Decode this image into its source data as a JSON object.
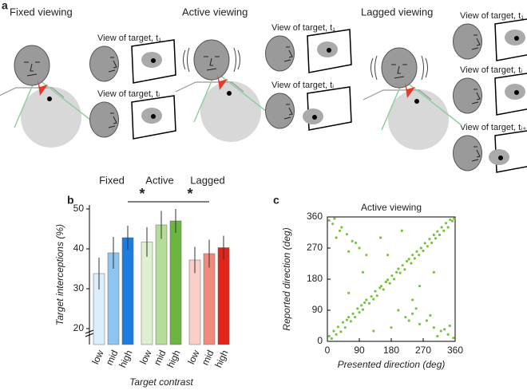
{
  "panel_labels": [
    "a",
    "b",
    "c"
  ],
  "diagram": {
    "titles": [
      "Fixed viewing",
      "Active viewing",
      "Lagged viewing"
    ],
    "views": [
      [
        "View of target, t₁",
        "View of target, tᵢ"
      ],
      [
        "View of target, t₁",
        "View of target, tᵢ"
      ],
      [
        "View of target, t₁",
        "View of target, tᵢ",
        "View of target, tᵢ₊ₗ"
      ]
    ]
  },
  "chart_data": [
    {
      "type": "bar",
      "ylabel": "Target interceptions (%)",
      "xlabel": "Target contrast",
      "groups": [
        "Fixed",
        "Active",
        "Lagged"
      ],
      "categories": [
        "low",
        "mid",
        "high",
        "low",
        "mid",
        "high",
        "low",
        "mid",
        "high"
      ],
      "values": [
        33.8,
        39,
        42.8,
        41.7,
        46,
        47,
        37.2,
        38.8,
        40.3
      ],
      "errors": [
        4,
        4,
        3,
        3.7,
        3.5,
        3,
        3.3,
        3.5,
        3
      ],
      "colors": [
        "#dceefb",
        "#8ec4f0",
        "#1e7be0",
        "#dff0d0",
        "#b5dc98",
        "#6cb541",
        "#f9cfc8",
        "#f08a7c",
        "#e3241b"
      ],
      "annotations": [
        "*",
        "*"
      ],
      "ylim": [
        16,
        51
      ],
      "yticks": [
        20,
        30,
        40,
        50
      ]
    },
    {
      "type": "scatter",
      "title": "Active viewing",
      "xlabel": "Presented direction (deg)",
      "ylabel": "Reported direction (deg)",
      "color": "#7cc242",
      "x": [
        5,
        12,
        18,
        25,
        30,
        38,
        44,
        50,
        55,
        60,
        66,
        72,
        78,
        85,
        90,
        96,
        100,
        105,
        110,
        118,
        124,
        130,
        135,
        140,
        148,
        152,
        158,
        165,
        170,
        176,
        182,
        188,
        195,
        200,
        205,
        212,
        218,
        224,
        230,
        236,
        240,
        246,
        252,
        258,
        264,
        270,
        275,
        282,
        288,
        294,
        300,
        305,
        310,
        316,
        322,
        328,
        334,
        340,
        346,
        352,
        357,
        200,
        220,
        240,
        260,
        280,
        300,
        320,
        340,
        355,
        250,
        290,
        330,
        230,
        310,
        345,
        5,
        15,
        25,
        40,
        55,
        70,
        90,
        110,
        20,
        60,
        35,
        80,
        150,
        180,
        100,
        130,
        260,
        300,
        60,
        210,
        170,
        240
      ],
      "y": [
        15,
        8,
        30,
        20,
        42,
        28,
        55,
        40,
        62,
        70,
        58,
        80,
        70,
        95,
        84,
        104,
        92,
        112,
        120,
        110,
        130,
        122,
        145,
        132,
        155,
        160,
        150,
        172,
        178,
        168,
        190,
        180,
        200,
        210,
        198,
        220,
        208,
        232,
        238,
        226,
        250,
        240,
        260,
        250,
        270,
        262,
        284,
        275,
        296,
        285,
        308,
        298,
        318,
        308,
        330,
        320,
        342,
        330,
        352,
        348,
        355,
        90,
        70,
        80,
        50,
        60,
        40,
        30,
        20,
        10,
        95,
        75,
        35,
        60,
        15,
        45,
        350,
        340,
        300,
        330,
        310,
        290,
        270,
        250,
        355,
        260,
        320,
        285,
        300,
        40,
        200,
        30,
        160,
        200,
        140,
        320,
        250,
        120
      ],
      "xlim": [
        0,
        360
      ],
      "ylim": [
        0,
        360
      ],
      "xticks": [
        0,
        90,
        180,
        270,
        360
      ],
      "yticks": [
        0,
        90,
        180,
        270,
        360
      ]
    }
  ]
}
